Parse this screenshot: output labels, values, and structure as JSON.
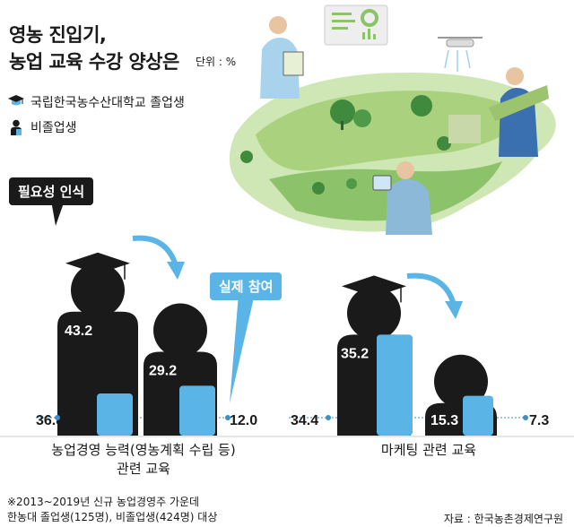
{
  "title_line1": "영농 진입기,",
  "title_line2": "농업 교육 수강 양상은",
  "unit": "단위 : %",
  "legend": {
    "grad_icon": "graduation-cap-icon",
    "grad_label": "국립한국농수산대학교 졸업생",
    "nongrad_icon": "person-icon",
    "nongrad_label": "비졸업생"
  },
  "callouts": {
    "perceived": "필요성 인식",
    "actual": "실제 참여"
  },
  "chart_data": {
    "type": "bar",
    "groups": [
      {
        "label_line1": "농업경영 능력(영농계획 수립 등)",
        "label_line2": "관련 교육",
        "perceived": {
          "graduates": 43.2,
          "non_graduates": 36.8
        },
        "actual": {
          "graduates": 12.0,
          "non_graduates": 29.2
        }
      },
      {
        "label_line1": "마케팅 관련 교육",
        "label_line2": "",
        "perceived": {
          "graduates": 35.2,
          "non_graduates": 34.4
        },
        "actual": {
          "graduates": 7.3,
          "non_graduates": 15.3
        }
      }
    ],
    "value_labels": [
      "43.2",
      "36.8",
      "29.2",
      "12.0",
      "35.2",
      "34.4",
      "15.3",
      "7.3"
    ],
    "colors": {
      "graduates": "#5ab4e5",
      "non_graduates": "#1a1a1a"
    }
  },
  "note_line1": "※2013~2019년 신규 농업경영주 가운데",
  "note_line2": "한농대 졸업생(125명), 비졸업생(424명) 대상",
  "source": "자료 : 한국농촌경제연구원"
}
